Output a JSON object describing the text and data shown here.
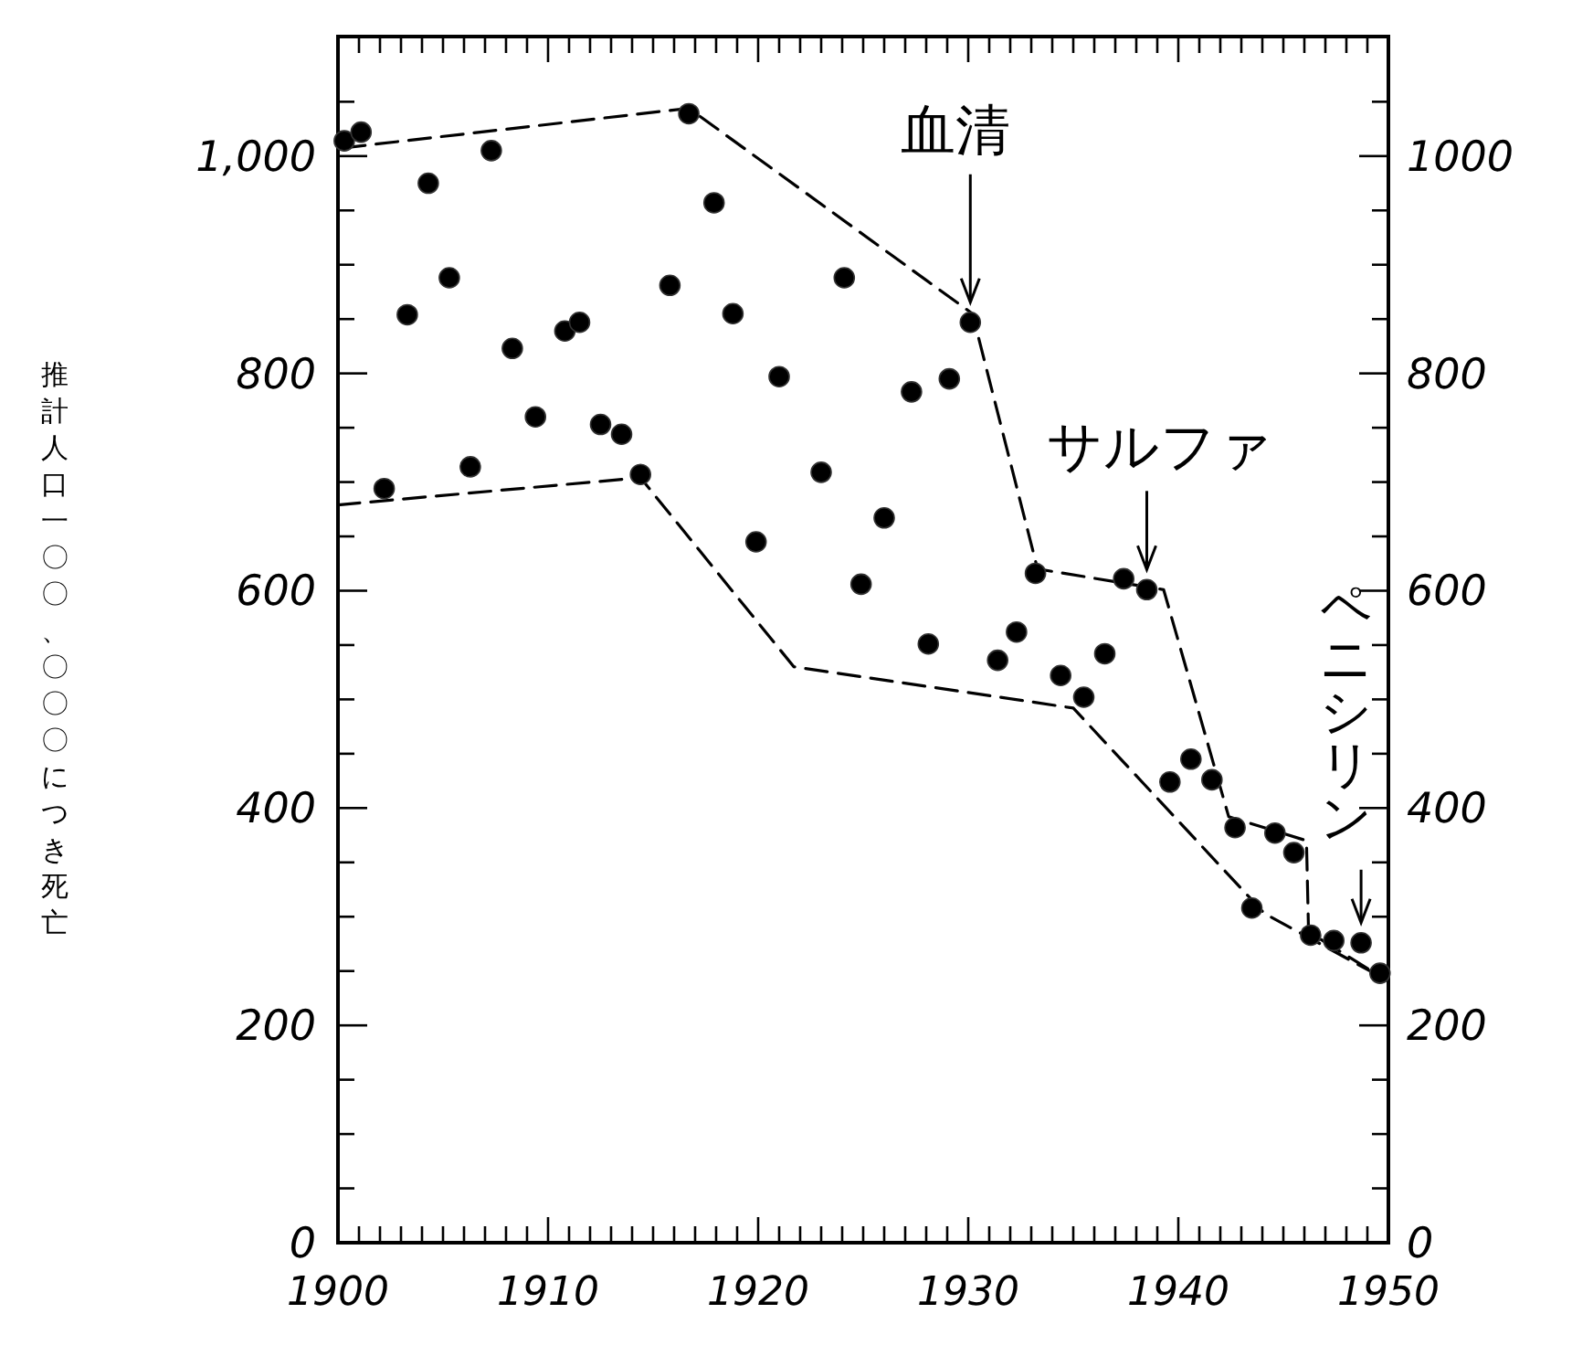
{
  "chart_data": {
    "type": "scatter",
    "ylabel": "推計人口一〇〇、〇〇〇につき死亡",
    "xlim": [
      1900,
      1950
    ],
    "ylim": [
      0,
      1110
    ],
    "y2lim": [
      0,
      1110
    ],
    "xticks": [
      1900,
      {
        "value": 1901,
        "label": null
      },
      {
        "value": 1902,
        "label": null
      },
      {
        "value": 1903,
        "label": null
      },
      {
        "value": 1904,
        "label": null
      },
      {
        "value": 1905,
        "label": null
      },
      {
        "value": 1906,
        "label": null
      },
      {
        "value": 1907,
        "label": null
      },
      {
        "value": 1908,
        "label": null
      },
      {
        "value": 1909,
        "label": null
      },
      1910,
      {
        "value": 1911,
        "label": null
      },
      {
        "value": 1912,
        "label": null
      },
      {
        "value": 1913,
        "label": null
      },
      {
        "value": 1914,
        "label": null
      },
      {
        "value": 1915,
        "label": null
      },
      {
        "value": 1916,
        "label": null
      },
      {
        "value": 1917,
        "label": null
      },
      {
        "value": 1918,
        "label": null
      },
      {
        "value": 1919,
        "label": null
      },
      1920,
      {
        "value": 1921,
        "label": null
      },
      {
        "value": 1922,
        "label": null
      },
      {
        "value": 1923,
        "label": null
      },
      {
        "value": 1924,
        "label": null
      },
      {
        "value": 1925,
        "label": null
      },
      {
        "value": 1926,
        "label": null
      },
      {
        "value": 1927,
        "label": null
      },
      {
        "value": 1928,
        "label": null
      },
      {
        "value": 1929,
        "label": null
      },
      1930,
      {
        "value": 1931,
        "label": null
      },
      {
        "value": 1932,
        "label": null
      },
      {
        "value": 1933,
        "label": null
      },
      {
        "value": 1934,
        "label": null
      },
      {
        "value": 1935,
        "label": null
      },
      {
        "value": 1936,
        "label": null
      },
      {
        "value": 1937,
        "label": null
      },
      {
        "value": 1938,
        "label": null
      },
      {
        "value": 1939,
        "label": null
      },
      1940,
      {
        "value": 1941,
        "label": null
      },
      {
        "value": 1942,
        "label": null
      },
      {
        "value": 1943,
        "label": null
      },
      {
        "value": 1944,
        "label": null
      },
      {
        "value": 1945,
        "label": null
      },
      {
        "value": 1946,
        "label": null
      },
      {
        "value": 1947,
        "label": null
      },
      {
        "value": 1948,
        "label": null
      },
      {
        "value": 1949,
        "label": null
      },
      1950
    ],
    "yticks": [
      0,
      {
        "value": 50,
        "label": null
      },
      {
        "value": 100,
        "label": null
      },
      {
        "value": 150,
        "label": null
      },
      200,
      {
        "value": 250,
        "label": null
      },
      {
        "value": 300,
        "label": null
      },
      {
        "value": 350,
        "label": null
      },
      400,
      {
        "value": 450,
        "label": null
      },
      {
        "value": 500,
        "label": null
      },
      {
        "value": 550,
        "label": null
      },
      600,
      {
        "value": 650,
        "label": null
      },
      {
        "value": 700,
        "label": null
      },
      {
        "value": 750,
        "label": null
      },
      800,
      {
        "value": 850,
        "label": null
      },
      {
        "value": 900,
        "label": null
      },
      {
        "value": 950,
        "label": null
      },
      {
        "value": 1000,
        "label": "1,000"
      },
      {
        "value": 1050,
        "label": null
      }
    ],
    "y2ticks": [
      0,
      {
        "value": 50,
        "label": null
      },
      {
        "value": 100,
        "label": null
      },
      {
        "value": 150,
        "label": null
      },
      200,
      {
        "value": 250,
        "label": null
      },
      {
        "value": 300,
        "label": null
      },
      {
        "value": 350,
        "label": null
      },
      400,
      {
        "value": 450,
        "label": null
      },
      {
        "value": 500,
        "label": null
      },
      {
        "value": 550,
        "label": null
      },
      600,
      {
        "value": 650,
        "label": null
      },
      {
        "value": 700,
        "label": null
      },
      {
        "value": 750,
        "label": null
      },
      800,
      {
        "value": 850,
        "label": null
      },
      {
        "value": 900,
        "label": null
      },
      {
        "value": 950,
        "label": null
      },
      1000,
      {
        "value": 1050,
        "label": null
      }
    ],
    "series": [
      {
        "type": "line",
        "color": "#000000",
        "line_style": "dashed",
        "marker": "none",
        "x": [
          1900,
          1900,
          1916.7,
          1930.2,
          1933.3,
          1939.3,
          1942.4,
          1946.1,
          1946.2,
          1949.7
        ],
        "values": [
          679,
          1007,
          1044,
          855,
          620,
          601,
          392,
          370,
          286,
          244
        ]
      },
      {
        "type": "line",
        "color": "#000000",
        "line_style": "dashed",
        "marker": "none",
        "x": [
          1900,
          1914.4,
          1921.7,
          1935,
          1944.1,
          1949.7
        ],
        "values": [
          679,
          704,
          530,
          492,
          303,
          244
        ]
      },
      {
        "color": "#000000",
        "marker": "circle",
        "x": [
          1900.3,
          1901.1,
          1907.3,
          1904.3,
          1916.7,
          1917.9,
          1905.3,
          1903.3,
          1915.8,
          1918.8,
          1924.1,
          1930.1,
          1908.3,
          1910.8,
          1911.5,
          1921,
          1927.3,
          1929.1,
          1909.4,
          1912.5,
          1913.5,
          1906.3,
          1902.2,
          1914.4,
          1923,
          1926,
          1919.9,
          1924.9,
          1928.1,
          1933.2,
          1937.4,
          1938.5,
          1932.3,
          1931.4,
          1936.5,
          1934.4,
          1935.5,
          1940.6,
          1939.6,
          1941.6,
          1942.7,
          1944.6,
          1945.5,
          1943.5,
          1946.3,
          1947.4,
          1948.7,
          1949.6
        ],
        "values": [
          1014,
          1022,
          1005,
          975,
          1039,
          957,
          888,
          854,
          881,
          855,
          888,
          847,
          823,
          839,
          847,
          797,
          783,
          795,
          760,
          753,
          744,
          714,
          694,
          707,
          709,
          667,
          645,
          606,
          551,
          616,
          611,
          601,
          562,
          536,
          542,
          522,
          502,
          445,
          424,
          426,
          382,
          377,
          359,
          308,
          283,
          278,
          276,
          248
        ]
      }
    ],
    "annotations": [
      {
        "text": "血清",
        "x": 1930.1,
        "y": 847
      },
      {
        "text": "サルファ",
        "x": 1938.5,
        "y": 601
      },
      {
        "text": "ペニシリン",
        "x": 1948.7,
        "y": 276
      }
    ]
  }
}
